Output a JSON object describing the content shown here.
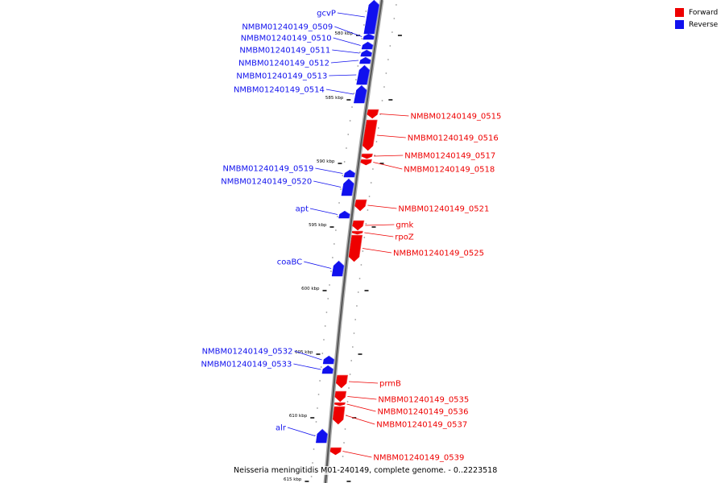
{
  "legend": {
    "forward": {
      "label": "Forward",
      "color": "#ee0000"
    },
    "reverse": {
      "label": "Reverse",
      "color": "#1111ee"
    }
  },
  "caption": "Neisseria meningitidis M01-240149, complete genome. - 0..2223518",
  "scale_ticks": [
    {
      "label": "580 kbp"
    },
    {
      "label": "585 kbp"
    },
    {
      "label": "590 kbp"
    },
    {
      "label": "595 kbp"
    },
    {
      "label": "600 kbp"
    },
    {
      "label": "605 kbp"
    },
    {
      "label": "610 kbp"
    },
    {
      "label": "615 kbp"
    }
  ],
  "genes": [
    {
      "name": "gcvP",
      "strand": "reverse"
    },
    {
      "name": "NMBM01240149_0509",
      "strand": "reverse"
    },
    {
      "name": "NMBM01240149_0510",
      "strand": "reverse"
    },
    {
      "name": "NMBM01240149_0511",
      "strand": "reverse"
    },
    {
      "name": "NMBM01240149_0512",
      "strand": "reverse"
    },
    {
      "name": "NMBM01240149_0513",
      "strand": "reverse"
    },
    {
      "name": "NMBM01240149_0514",
      "strand": "reverse"
    },
    {
      "name": "NMBM01240149_0515",
      "strand": "forward"
    },
    {
      "name": "NMBM01240149_0516",
      "strand": "forward"
    },
    {
      "name": "NMBM01240149_0517",
      "strand": "forward"
    },
    {
      "name": "NMBM01240149_0518",
      "strand": "forward"
    },
    {
      "name": "NMBM01240149_0519",
      "strand": "reverse"
    },
    {
      "name": "NMBM01240149_0520",
      "strand": "reverse"
    },
    {
      "name": "apt",
      "strand": "reverse"
    },
    {
      "name": "NMBM01240149_0521",
      "strand": "forward"
    },
    {
      "name": "gmk",
      "strand": "forward"
    },
    {
      "name": "rpoZ",
      "strand": "forward"
    },
    {
      "name": "NMBM01240149_0525",
      "strand": "forward"
    },
    {
      "name": "coaBC",
      "strand": "reverse"
    },
    {
      "name": "NMBM01240149_0532",
      "strand": "reverse"
    },
    {
      "name": "NMBM01240149_0533",
      "strand": "reverse"
    },
    {
      "name": "prmB",
      "strand": "forward"
    },
    {
      "name": "NMBM01240149_0535",
      "strand": "forward"
    },
    {
      "name": "NMBM01240149_0536",
      "strand": "forward"
    },
    {
      "name": "NMBM01240149_0537",
      "strand": "forward"
    },
    {
      "name": "alr",
      "strand": "reverse"
    },
    {
      "name": "NMBM01240149_0539",
      "strand": "forward"
    }
  ]
}
